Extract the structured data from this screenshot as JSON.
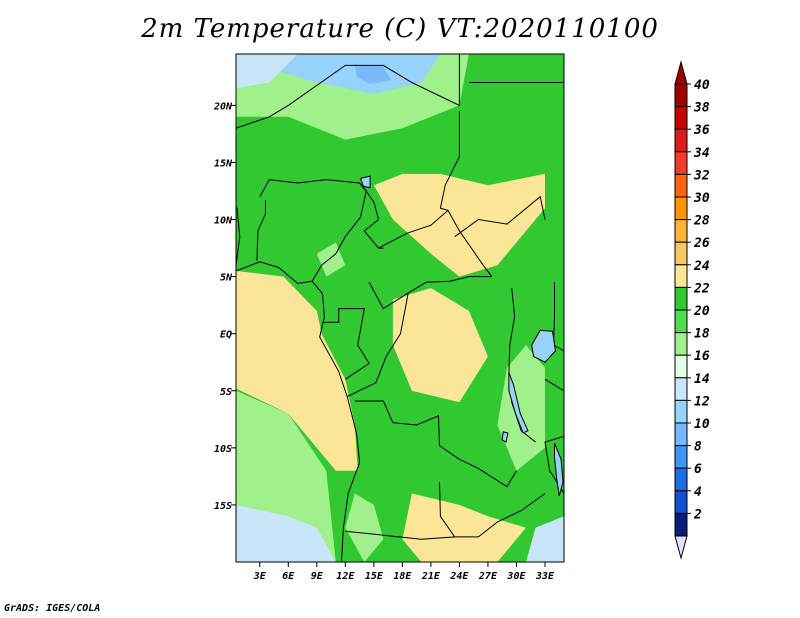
{
  "title": "2m Temperature (C) VT:2020110100",
  "credit": "GrADS: IGES/COLA",
  "map": {
    "lon_range": [
      0.5,
      35.0
    ],
    "lat_range": [
      -20.0,
      24.5
    ],
    "lat_ticks": [
      {
        "label": "20N",
        "value": 20
      },
      {
        "label": "15N",
        "value": 15
      },
      {
        "label": "10N",
        "value": 10
      },
      {
        "label": "5N",
        "value": 5
      },
      {
        "label": "EQ",
        "value": 0
      },
      {
        "label": "5S",
        "value": -5
      },
      {
        "label": "10S",
        "value": -10
      },
      {
        "label": "15S",
        "value": -15
      }
    ],
    "lon_ticks": [
      {
        "label": "3E",
        "value": 3
      },
      {
        "label": "6E",
        "value": 6
      },
      {
        "label": "9E",
        "value": 9
      },
      {
        "label": "12E",
        "value": 12
      },
      {
        "label": "15E",
        "value": 15
      },
      {
        "label": "18E",
        "value": 18
      },
      {
        "label": "21E",
        "value": 21
      },
      {
        "label": "24E",
        "value": 24
      },
      {
        "label": "27E",
        "value": 27
      },
      {
        "label": "30E",
        "value": 30
      },
      {
        "label": "33E",
        "value": 33
      }
    ]
  },
  "colorbar": {
    "labels": [
      "40",
      "38",
      "36",
      "34",
      "32",
      "30",
      "28",
      "26",
      "24",
      "22",
      "20",
      "18",
      "16",
      "14",
      "12",
      "10",
      "8",
      "6",
      "4",
      "2"
    ],
    "colors_top_to_bottom": [
      "#a00000",
      "#c80000",
      "#dc1e1e",
      "#f03c28",
      "#fa6414",
      "#fa9600",
      "#fab43c",
      "#f5c864",
      "#fae696",
      "#32c832",
      "#50dc50",
      "#a0f08c",
      "#e1ffe1",
      "#c8e6fa",
      "#96d2fa",
      "#78b9fa",
      "#3c96f5",
      "#1e6ee6",
      "#1450d2",
      "#0a1e78"
    ],
    "over_color": "#a00000",
    "under_color": "#e1e1fa"
  },
  "field_palette": {
    "lt16": "#c8e6fa",
    "t16_18": "#e1ffe1",
    "t18_20": "#a0f08c",
    "t20_22": "#50dc50",
    "t22_24": "#32c832",
    "t24_26": "#fae696",
    "t26_28": "#f5c864",
    "cold_14": "#96d2fa",
    "cold_12": "#78b9fa"
  }
}
